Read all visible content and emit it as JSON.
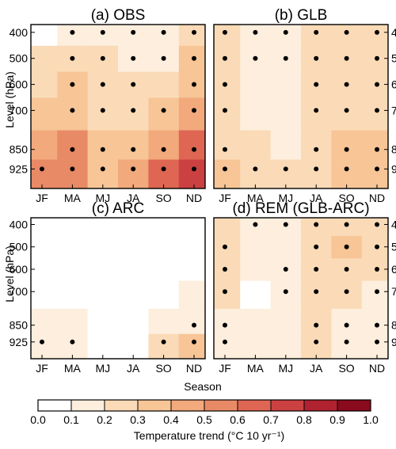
{
  "chart_data": {
    "type": "heatmap",
    "xlabel": "Season",
    "ylabel": "Level (hPa)",
    "seasons": [
      "JF",
      "MA",
      "MJ",
      "JA",
      "SO",
      "ND"
    ],
    "levels": [
      925,
      850,
      700,
      600,
      500,
      400
    ],
    "level_ticks": [
      "400",
      "500",
      "600",
      "700",
      "850",
      "925"
    ],
    "ylim": [
      1000,
      350
    ],
    "colorbar": {
      "label": "Temperature trend (°C 10 yr⁻¹)",
      "ticks": [
        "0.0",
        "0.1",
        "0.2",
        "0.3",
        "0.4",
        "0.5",
        "0.6",
        "0.7",
        "0.8",
        "0.9",
        "1.0"
      ],
      "bounds": [
        0.0,
        0.1,
        0.2,
        0.3,
        0.4,
        0.5,
        0.6,
        0.7,
        0.8,
        0.9,
        1.0
      ],
      "colors": [
        "#ffffff",
        "#fdeedd",
        "#fbdbb7",
        "#f7c596",
        "#f2a97c",
        "#e98a66",
        "#de6653",
        "#cb4141",
        "#b02230",
        "#8a0a1e"
      ]
    },
    "panels": [
      {
        "title": "(a) OBS",
        "values": [
          [
            0.55,
            0.55,
            0.38,
            0.4,
            0.6,
            0.75
          ],
          [
            0.42,
            0.5,
            0.35,
            0.32,
            0.48,
            0.6
          ],
          [
            0.33,
            0.36,
            0.28,
            0.27,
            0.3,
            0.45
          ],
          [
            0.28,
            0.32,
            0.25,
            0.22,
            0.24,
            0.38
          ],
          [
            0.22,
            0.26,
            0.22,
            0.18,
            0.17,
            0.3
          ],
          [
            0.05,
            0.17,
            0.19,
            0.16,
            0.13,
            0.2
          ]
        ],
        "significant": [
          [
            1,
            1,
            1,
            1,
            1,
            1
          ],
          [
            0,
            1,
            1,
            1,
            1,
            1
          ],
          [
            0,
            1,
            1,
            1,
            1,
            1
          ],
          [
            0,
            1,
            1,
            1,
            0,
            1
          ],
          [
            0,
            1,
            1,
            1,
            1,
            1
          ],
          [
            0,
            1,
            1,
            1,
            1,
            1
          ]
        ]
      },
      {
        "title": "(b) GLB",
        "values": [
          [
            0.32,
            0.25,
            0.22,
            0.26,
            0.34,
            0.34
          ],
          [
            0.29,
            0.21,
            0.18,
            0.23,
            0.3,
            0.3
          ],
          [
            0.27,
            0.17,
            0.16,
            0.22,
            0.29,
            0.28
          ],
          [
            0.26,
            0.16,
            0.16,
            0.22,
            0.29,
            0.28
          ],
          [
            0.26,
            0.16,
            0.17,
            0.22,
            0.29,
            0.28
          ],
          [
            0.22,
            0.15,
            0.16,
            0.22,
            0.25,
            0.24
          ]
        ],
        "significant": [
          [
            1,
            1,
            1,
            1,
            1,
            1
          ],
          [
            1,
            0,
            0,
            1,
            1,
            1
          ],
          [
            1,
            0,
            0,
            1,
            1,
            1
          ],
          [
            1,
            0,
            0,
            1,
            1,
            1
          ],
          [
            1,
            1,
            1,
            1,
            1,
            1
          ],
          [
            1,
            1,
            1,
            1,
            1,
            1
          ]
        ]
      },
      {
        "title": "(c) ARC",
        "values": [
          [
            0.18,
            0.12,
            0.05,
            0.06,
            0.25,
            0.3
          ],
          [
            0.15,
            0.12,
            0.05,
            0.06,
            0.15,
            0.18
          ],
          [
            0.05,
            0.03,
            0.02,
            0.02,
            0.06,
            0.12
          ],
          [
            0.02,
            0.01,
            0.01,
            0.01,
            0.03,
            0.05
          ],
          [
            0.01,
            0.01,
            0.0,
            0.0,
            0.02,
            0.03
          ],
          [
            0.0,
            0.0,
            0.0,
            0.0,
            0.01,
            0.02
          ]
        ],
        "significant": [
          [
            1,
            1,
            0,
            0,
            1,
            1
          ],
          [
            0,
            0,
            0,
            0,
            0,
            1
          ],
          [
            0,
            0,
            0,
            0,
            0,
            0
          ],
          [
            0,
            0,
            0,
            0,
            0,
            0
          ],
          [
            0,
            0,
            0,
            0,
            0,
            0
          ],
          [
            0,
            0,
            0,
            0,
            0,
            0
          ]
        ]
      },
      {
        "title": "(d) REM (GLB-ARC)",
        "values": [
          [
            0.16,
            0.12,
            0.15,
            0.2,
            0.17,
            0.12
          ],
          [
            0.15,
            0.12,
            0.14,
            0.2,
            0.19,
            0.15
          ],
          [
            0.2,
            0.07,
            0.13,
            0.22,
            0.26,
            0.17
          ],
          [
            0.23,
            0.1,
            0.15,
            0.23,
            0.29,
            0.22
          ],
          [
            0.25,
            0.14,
            0.18,
            0.23,
            0.31,
            0.24
          ],
          [
            0.21,
            0.15,
            0.17,
            0.22,
            0.25,
            0.23
          ]
        ],
        "significant": [
          [
            1,
            0,
            0,
            1,
            1,
            1
          ],
          [
            1,
            0,
            0,
            1,
            1,
            1
          ],
          [
            1,
            0,
            1,
            1,
            1,
            1
          ],
          [
            1,
            0,
            1,
            1,
            1,
            1
          ],
          [
            1,
            0,
            0,
            1,
            1,
            1
          ],
          [
            0,
            1,
            1,
            1,
            1,
            1
          ]
        ]
      }
    ]
  }
}
